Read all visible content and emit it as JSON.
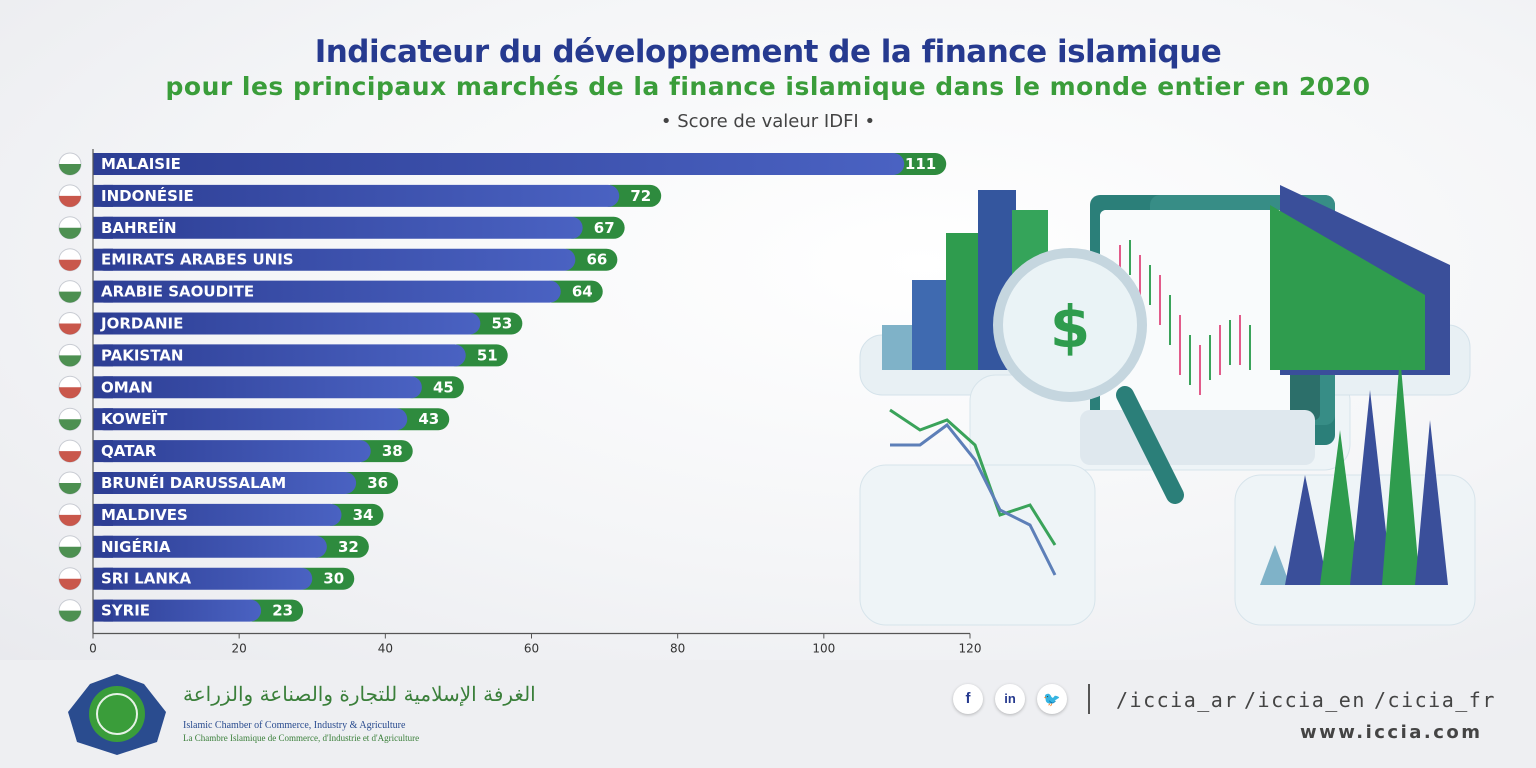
{
  "header": {
    "title": "Indicateur du développement de la finance islamique",
    "subtitle": "pour les principaux marchés de la finance islamique dans le monde entier en 2020",
    "metric": "• Score de valeur IDFI •"
  },
  "chart_data": {
    "type": "bar",
    "orientation": "horizontal",
    "title": "Indicateur du développement de la finance islamique",
    "subtitle": "pour les principaux marchés de la finance islamique dans le monde entier en 2020",
    "categories": [
      "MALAISIE",
      "INDONÉSIE",
      "BAHREÏN",
      "EMIRATS ARABES UNIS",
      "ARABIE SAOUDITE",
      "JORDANIE",
      "PAKISTAN",
      "OMAN",
      "KOWEÏT",
      "QATAR",
      "BRUNÉI DARUSSALAM",
      "MALDIVES",
      "NIGÉRIA",
      "SRI LANKA",
      "SYRIE"
    ],
    "values": [
      111,
      72,
      67,
      66,
      64,
      53,
      51,
      45,
      43,
      38,
      36,
      34,
      32,
      30,
      23
    ],
    "xlim": [
      0,
      120
    ],
    "xticks": [
      0,
      20,
      40,
      60,
      80,
      100,
      120
    ],
    "grid": false,
    "legend": "none"
  },
  "colors": {
    "title": "#263a8f",
    "subtitle": "#3a9d3a",
    "bar": "#3347a3",
    "value_pill": "#2e8b3e"
  },
  "footer": {
    "org_name_ar": "الغرفة الإسلامية للتجارة والصناعة والزراعة",
    "org_name_en": "Islamic Chamber of Commerce, Industry & Agriculture",
    "org_name_fr": "La Chambre Islamique de Commerce, d'Industrie et d'Agriculture",
    "social_icons": [
      "facebook-icon",
      "linkedin-icon",
      "twitter-icon"
    ],
    "facebook_glyph": "f",
    "linkedin_glyph": "in",
    "twitter_glyph": "🐦",
    "handles": [
      "/iccia_ar",
      "/iccia_en",
      "/cicia_fr"
    ],
    "website": "www.iccia.com"
  }
}
